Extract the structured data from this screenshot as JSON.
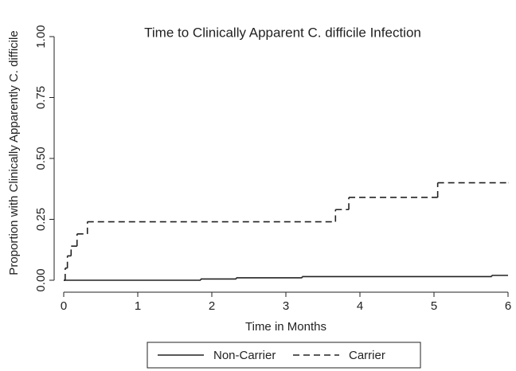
{
  "chart_data": {
    "type": "step",
    "title": "Time to Clinically Apparent C. difficile Infection",
    "xlabel": "Time in Months",
    "ylabel": "Proportion with Clinically Apparently C. difficile",
    "xlim": [
      0,
      6
    ],
    "xticks": [
      0,
      1,
      2,
      3,
      4,
      5,
      6
    ],
    "ylim": [
      0,
      1
    ],
    "yticks": [
      {
        "value": 0,
        "label": "0.00"
      },
      {
        "value": 0.25,
        "label": "0.25"
      },
      {
        "value": 0.5,
        "label": "0.50"
      },
      {
        "value": 0.75,
        "label": "0.75"
      },
      {
        "value": 1,
        "label": "1.00"
      }
    ],
    "series": [
      {
        "name": "Non-Carrier",
        "color": "#222222",
        "line_style": "solid",
        "x": [
          0,
          1.85,
          2.33,
          3.22,
          5.78,
          6
        ],
        "values": [
          0,
          0.005,
          0.01,
          0.015,
          0.02,
          0.02
        ]
      },
      {
        "name": "Carrier",
        "color": "#222222",
        "line_style": "dashed",
        "x": [
          0,
          0.02,
          0.05,
          0.1,
          0.18,
          0.32,
          3.67,
          3.85,
          5.05,
          6
        ],
        "values": [
          0,
          0.05,
          0.1,
          0.14,
          0.19,
          0.24,
          0.29,
          0.34,
          0.4,
          0.4
        ]
      }
    ]
  }
}
